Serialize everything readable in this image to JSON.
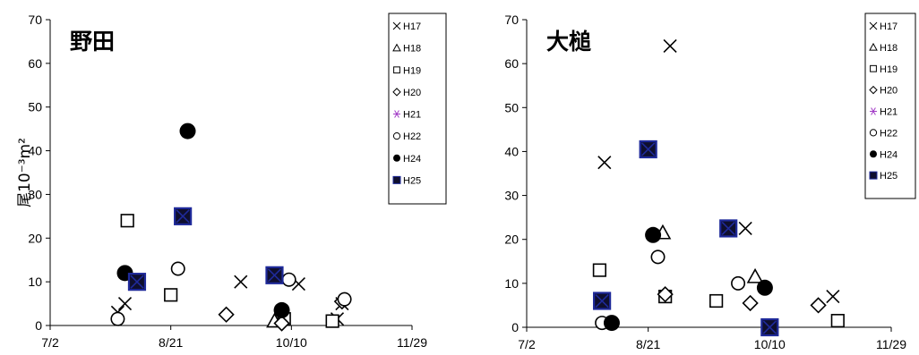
{
  "y_axis_label": "尾10⁻³m²",
  "x_ticks": [
    "7/2",
    "8/21",
    "10/10",
    "11/29"
  ],
  "y_ticks": [
    "0",
    "10",
    "20",
    "30",
    "40",
    "50",
    "60",
    "70"
  ],
  "colors": {
    "h21": "#a23cc6",
    "h25_fill": "#0f0f2e",
    "h25_cross": "#1f2a9a"
  },
  "chart_data": [
    {
      "type": "scatter",
      "title": "野田",
      "xlabel": "",
      "ylabel": "尾10⁻³m²",
      "xlim": [
        "7/2",
        "11/29"
      ],
      "ylim": [
        0,
        70
      ],
      "legend_position": "top-right",
      "series": [
        {
          "name": "H17",
          "marker": "x",
          "points": [
            [
              "7/30",
              3
            ],
            [
              "8/2",
              5
            ],
            [
              "9/19",
              10
            ],
            [
              "10/13",
              9.5
            ],
            [
              "10/29",
              1.5
            ],
            [
              "10/31",
              5
            ]
          ]
        },
        {
          "name": "H18",
          "marker": "triangle",
          "points": [
            [
              "10/3",
              1
            ]
          ]
        },
        {
          "name": "H19",
          "marker": "square",
          "points": [
            [
              "8/3",
              24
            ],
            [
              "8/21",
              7
            ],
            [
              "10/7",
              1.5
            ],
            [
              "10/27",
              1
            ]
          ]
        },
        {
          "name": "H20",
          "marker": "diamond",
          "points": [
            [
              "9/13",
              2.5
            ],
            [
              "10/6",
              0.5
            ],
            [
              "10/31",
              5.5
            ]
          ]
        },
        {
          "name": "H21",
          "marker": "asterisk",
          "points": []
        },
        {
          "name": "H22",
          "marker": "circle",
          "points": [
            [
              "7/30",
              1.5
            ],
            [
              "8/24",
              13
            ],
            [
              "10/9",
              10.5
            ],
            [
              "11/1",
              6
            ]
          ]
        },
        {
          "name": "H24",
          "marker": "filled-circle",
          "points": [
            [
              "8/2",
              12
            ],
            [
              "8/28",
              44.5
            ],
            [
              "10/6",
              3.5
            ]
          ]
        },
        {
          "name": "H25",
          "marker": "filled-square",
          "points": [
            [
              "8/7",
              10
            ],
            [
              "8/26",
              25
            ],
            [
              "10/3",
              11.5
            ]
          ]
        }
      ]
    },
    {
      "type": "scatter",
      "title": "大槌",
      "xlabel": "",
      "ylabel": "",
      "xlim": [
        "7/2",
        "11/29"
      ],
      "ylim": [
        0,
        70
      ],
      "legend_position": "top-right",
      "series": [
        {
          "name": "H17",
          "marker": "x",
          "points": [
            [
              "8/3",
              37.5
            ],
            [
              "8/30",
              64
            ],
            [
              "9/30",
              22.5
            ],
            [
              "11/5",
              7
            ]
          ]
        },
        {
          "name": "H18",
          "marker": "triangle",
          "points": [
            [
              "8/27",
              21.5
            ],
            [
              "10/4",
              11.5
            ],
            [
              "10/10",
              0
            ]
          ]
        },
        {
          "name": "H19",
          "marker": "square",
          "points": [
            [
              "8/1",
              13
            ],
            [
              "8/28",
              7
            ],
            [
              "9/18",
              6
            ],
            [
              "11/7",
              1.5
            ]
          ]
        },
        {
          "name": "H20",
          "marker": "diamond",
          "points": [
            [
              "8/28",
              7.5
            ],
            [
              "10/2",
              5.5
            ],
            [
              "10/30",
              5
            ]
          ]
        },
        {
          "name": "H21",
          "marker": "asterisk",
          "points": []
        },
        {
          "name": "H22",
          "marker": "circle",
          "points": [
            [
              "8/2",
              1
            ],
            [
              "8/25",
              16
            ],
            [
              "9/27",
              10
            ]
          ]
        },
        {
          "name": "H24",
          "marker": "filled-circle",
          "points": [
            [
              "8/6",
              1
            ],
            [
              "8/23",
              21
            ],
            [
              "10/8",
              9
            ]
          ]
        },
        {
          "name": "H25",
          "marker": "filled-square",
          "points": [
            [
              "8/2",
              6
            ],
            [
              "8/21",
              40.5
            ],
            [
              "9/23",
              22.5
            ],
            [
              "10/10",
              0
            ]
          ]
        }
      ]
    }
  ]
}
